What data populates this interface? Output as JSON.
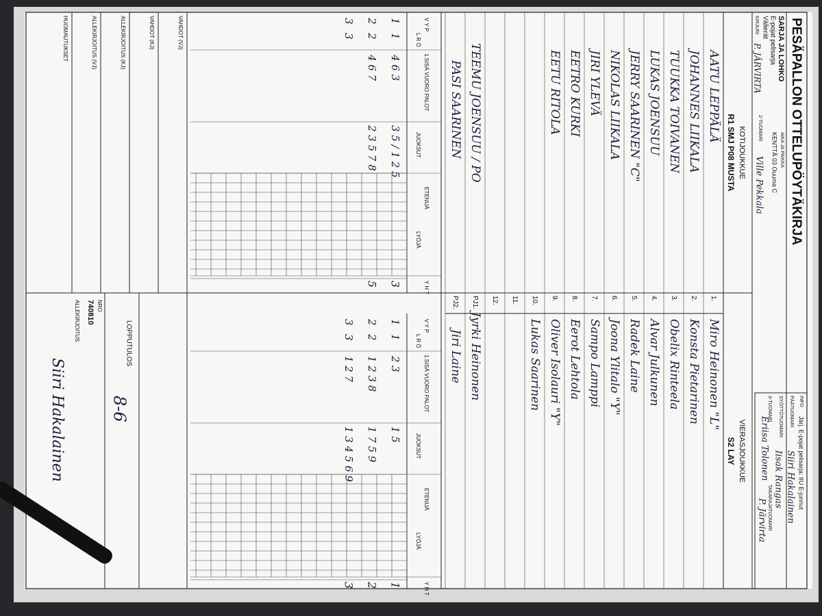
{
  "header": {
    "title": "PESÄPALLON OTTELUPÖYTÄKIRJA",
    "series_label": "SARJA JA LOHKO",
    "series": "E-pojat pelisarja",
    "stage": "Välierät",
    "place_label": "AIKA JA PAIKKA",
    "place": "KENTTÄ 03 Ouuma C",
    "info_label": "INFO",
    "info": "Järj. E-pojat pelisarja: IIU E-junnut",
    "scorer_label": "KIRJURI",
    "scorer": "P. JÄRVIRTA",
    "officials": [
      {
        "label": "PÄÄTUOMARI",
        "name": "Siiri Hakalainen"
      },
      {
        "label": "SYÖTTÖTUOMARI",
        "name": "Iisak Rangas"
      },
      {
        "label": "3-TUOMARI",
        "name": "Eriisa Tolonen"
      },
      {
        "label": "TAKARAJATUOMARI",
        "name": "P. Järvirta"
      },
      {
        "label": "2-TUOMARI",
        "name": "Ville Pekkala"
      }
    ]
  },
  "row_numbers": [
    "1.",
    "2.",
    "3.",
    "4.",
    "5.",
    "6.",
    "7.",
    "8.",
    "9.",
    "10.",
    "11.",
    "12.",
    "PJ1.",
    "PJ2."
  ],
  "home": {
    "label": "KOTIJOUKKUE",
    "team": "R1 SMJ P08 MUSTA",
    "players": [
      "AATU LEPPÄLÄ",
      "JOHANNES LIIKALA",
      "TUUKKA TOIVANEN",
      "LUKAS JOENSUU",
      "JERRY SAARINEN \"C\"",
      "NIKOLAS LIIKALA",
      "JIRI YLEVÄ",
      "EETRO KURKI",
      "EETU RITOLA"
    ],
    "pj1": "TEEMU JOENSUU / PO",
    "pj2": "PASI SAARINEN",
    "innings": [
      [
        "1",
        "1",
        "4 6 3",
        "3 5 / 1 2 5"
      ],
      [
        "2",
        "2",
        "4 6 7",
        "2 3 5 7 8"
      ],
      [
        "3",
        "3"
      ]
    ],
    "totals": [
      "3",
      "5"
    ]
  },
  "away": {
    "label": "VIERASJOUKKUE",
    "team": "S2 LAY",
    "players": [
      "Miro Heinonen \"L\"",
      "Konsta Pietarinen",
      "Obelix Rinteela",
      "Alvar Julkunen",
      "Radek Laine",
      "Joona Ylitalo \"Y\"",
      "Sampo Lamppi",
      "Eerot Lehtola",
      "Oliver Isolauri \"Y\"",
      "Lukas Saarinen"
    ],
    "pj1": "Jyrki Heinonen",
    "pj2": "Jiri Laine",
    "innings": [
      [
        "1",
        "1",
        "2 3",
        "1 5"
      ],
      [
        "2",
        "2",
        "1 2 3 8",
        "1 7 5 9"
      ],
      [
        "3",
        "3",
        "1 2 7",
        "1 3 4 5 6 9"
      ]
    ],
    "totals": [
      "1",
      "2",
      "3"
    ]
  },
  "innings_headers": [
    "V Y P",
    "L R Ö",
    "1.SISÄ VUORO PALOT",
    "JUOKSUT",
    "ETENIJÄ",
    "LYÖJÄ",
    "Y H T"
  ],
  "footer": {
    "rows": [
      "VAHDOT (VJ)",
      "VAHDOT (KJ)",
      "ALLEKIRJOITUS (KJ)",
      "ALLEKIRJOITUS (VJ)",
      "HUOMAUTUKSET"
    ],
    "result_label": "LOPPUTULOS",
    "result": "8-6",
    "number_label": "NRO",
    "number": "740810",
    "signature_label": "ALLEKIRJOITUS",
    "signature": "Siiri Hakalainen"
  }
}
